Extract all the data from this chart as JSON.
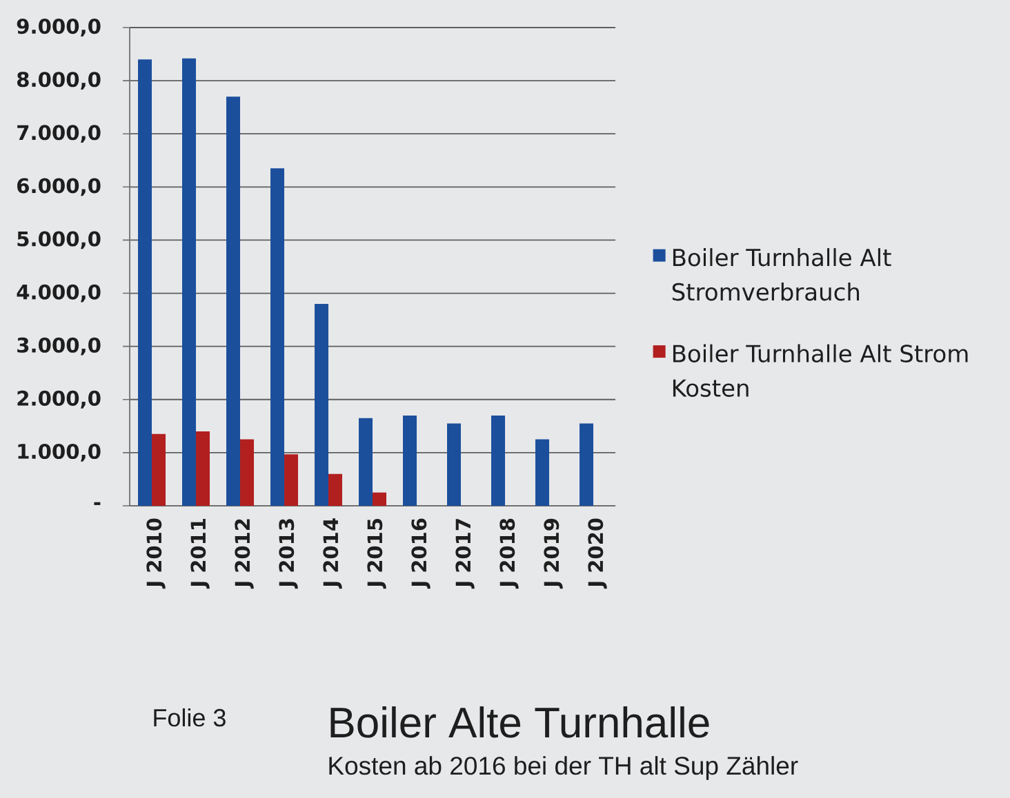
{
  "chart_data": {
    "type": "bar",
    "title": "Boiler Alte Turnhalle",
    "subtitle": "Kosten ab 2016 bei der TH alt Sup Zähler",
    "annotations": [
      "Folie 3"
    ],
    "categories": [
      "J 2010",
      "J 2011",
      "J 2012",
      "J 2013",
      "J 2014",
      "J 2015",
      "J 2016",
      "J 2017",
      "J 2018",
      "J 2019",
      "J 2020"
    ],
    "series": [
      {
        "name": "Boiler Turnhalle Alt Stromverbrauch",
        "color": "#1b4f9c",
        "values": [
          8400,
          8420,
          7700,
          6350,
          3800,
          1650,
          1700,
          1550,
          1700,
          1250,
          1550
        ]
      },
      {
        "name": "Boiler Turnhalle Alt Strom Kosten",
        "color": "#b21f1f",
        "values": [
          1350,
          1400,
          1250,
          970,
          600,
          250,
          null,
          null,
          null,
          null,
          null
        ]
      }
    ],
    "ylim": [
      0,
      9000
    ],
    "yticks": [
      {
        "value": 0,
        "label": "-"
      },
      {
        "value": 1000,
        "label": "1.000,0"
      },
      {
        "value": 2000,
        "label": "2.000,0"
      },
      {
        "value": 3000,
        "label": "3.000,0"
      },
      {
        "value": 4000,
        "label": "4.000,0"
      },
      {
        "value": 5000,
        "label": "5.000,0"
      },
      {
        "value": 6000,
        "label": "6.000,0"
      },
      {
        "value": 7000,
        "label": "7.000,0"
      },
      {
        "value": 8000,
        "label": "8.000,0"
      },
      {
        "value": 9000,
        "label": "9.000,0"
      }
    ],
    "grid": "y",
    "legend": "right"
  }
}
